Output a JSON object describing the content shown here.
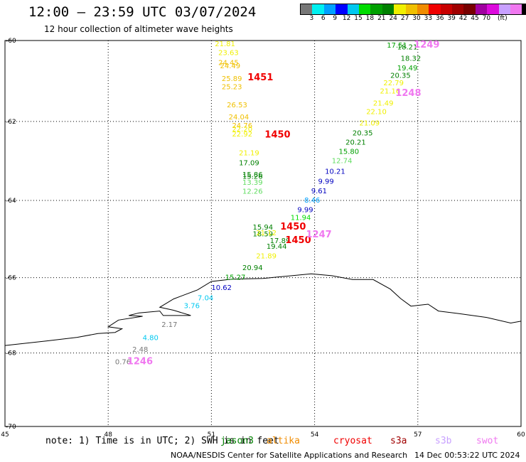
{
  "header": {
    "title": "12:00 – 23:59 UTC 03/07/2024",
    "subtitle": "12 hour collection of altimeter wave heights"
  },
  "colorbar": {
    "colors": [
      "#777777",
      "#00f0f0",
      "#00a0ff",
      "#0000ff",
      "#00c8f0",
      "#00dc00",
      "#00a000",
      "#008000",
      "#f0f000",
      "#f0c000",
      "#f08c00",
      "#f00000",
      "#c80000",
      "#a00000",
      "#780000",
      "#a000a0",
      "#dc0adc",
      "#c8a0ff",
      "#f078f0",
      "#000000"
    ],
    "labels": [
      "3",
      "6",
      "9",
      "12",
      "15",
      "18",
      "21",
      "24",
      "27",
      "30",
      "33",
      "36",
      "39",
      "42",
      "45",
      "70",
      "(ft)"
    ]
  },
  "map": {
    "lon_ticks": [
      "45",
      "48",
      "51",
      "54",
      "57",
      "60"
    ],
    "lat_ticks": [
      "-60",
      "-62",
      "-64",
      "-66",
      "-68",
      "-70"
    ],
    "coastline": [
      [
        45.0,
        -67.8
      ],
      [
        46.2,
        -67.68
      ],
      [
        47.1,
        -67.58
      ],
      [
        47.7,
        -67.48
      ],
      [
        48.2,
        -67.45
      ],
      [
        48.4,
        -67.35
      ],
      [
        48.0,
        -67.3
      ],
      [
        48.3,
        -67.12
      ],
      [
        49.0,
        -67.02
      ],
      [
        48.6,
        -67.0
      ],
      [
        48.9,
        -66.93
      ],
      [
        49.5,
        -66.88
      ],
      [
        49.6,
        -67.0
      ],
      [
        50.4,
        -67.0
      ],
      [
        49.9,
        -66.86
      ],
      [
        49.5,
        -66.78
      ],
      [
        49.9,
        -66.56
      ],
      [
        50.6,
        -66.32
      ],
      [
        51.0,
        -66.1
      ],
      [
        51.6,
        -66.04
      ],
      [
        52.5,
        -66.02
      ],
      [
        53.2,
        -65.96
      ],
      [
        53.9,
        -65.9
      ],
      [
        54.5,
        -65.95
      ],
      [
        55.1,
        -66.05
      ],
      [
        55.7,
        -66.05
      ],
      [
        56.2,
        -66.3
      ],
      [
        56.5,
        -66.55
      ],
      [
        56.8,
        -66.75
      ],
      [
        57.3,
        -66.7
      ],
      [
        57.6,
        -66.88
      ],
      [
        58.2,
        -66.95
      ],
      [
        59.0,
        -67.05
      ],
      [
        59.7,
        -67.2
      ],
      [
        60.0,
        -67.15
      ]
    ],
    "tracks": [
      {
        "label": "1249",
        "label_color": "#f078f0",
        "points": [
          [
            56.1,
            -60.17,
            "17.51",
            "#00a000"
          ],
          [
            56.4,
            -60.22,
            "18.21",
            "#008000"
          ],
          [
            56.5,
            -60.5,
            "18.32",
            "#008000"
          ],
          [
            56.4,
            -60.73,
            "19.49",
            "#00a000"
          ],
          [
            56.2,
            -60.92,
            "20.35",
            "#008000"
          ],
          [
            56.0,
            -61.1,
            "22.79",
            "#f0f000"
          ],
          [
            55.9,
            -61.3,
            "21.16",
            "#f0f000"
          ],
          [
            55.7,
            -61.6,
            "21.49",
            "#f0f000"
          ],
          [
            55.5,
            -61.82,
            "22.10",
            "#f0f000"
          ],
          [
            55.3,
            -62.1,
            "21.09",
            "#f0f000"
          ],
          [
            55.1,
            -62.35,
            "20.35",
            "#008000"
          ],
          [
            54.9,
            -62.58,
            "20.21",
            "#008000"
          ],
          [
            54.7,
            -62.82,
            "15.80",
            "#00a000"
          ],
          [
            54.5,
            -63.05,
            "12.74",
            "#60dc60"
          ],
          [
            54.3,
            -63.32,
            "10.21",
            "#0000c0"
          ],
          [
            54.1,
            -63.57,
            "9.99",
            "#0000c0"
          ],
          [
            53.9,
            -63.82,
            "9.61",
            "#0000c0"
          ],
          [
            53.7,
            -64.05,
            "8.46",
            "#00a0ff"
          ],
          [
            53.5,
            -64.3,
            "9.99",
            "#0000c0"
          ],
          [
            53.3,
            -64.5,
            "11.94",
            "#00dc00"
          ]
        ]
      },
      {
        "label": "1248",
        "label_color": "#f078f0",
        "points": [
          [
            56.35,
            -61.37,
            "",
            "#fff"
          ]
        ]
      },
      {
        "label": "1451",
        "label_color": "#f00000",
        "points": [
          [
            52.05,
            -60.98,
            "",
            "#fff"
          ]
        ]
      },
      {
        "label": "",
        "label_color": "#000",
        "points": [
          [
            51.1,
            -60.14,
            "21.81",
            "#f0f000"
          ],
          [
            51.2,
            -60.36,
            "23.63",
            "#f0f000"
          ],
          [
            51.2,
            -60.6,
            "24.45",
            "#f0c000"
          ],
          [
            51.25,
            -60.68,
            "24.49",
            "#f0c000"
          ],
          [
            51.3,
            -61.0,
            "25.89",
            "#f0c000"
          ],
          [
            51.3,
            -61.2,
            "25.23",
            "#f0c000"
          ],
          [
            51.45,
            -61.65,
            "26.53",
            "#f0c000"
          ],
          [
            51.5,
            -61.95,
            "24.04",
            "#f0c000"
          ],
          [
            51.6,
            -62.16,
            "24.76",
            "#f0c000"
          ],
          [
            51.6,
            -62.25,
            "22.20",
            "#f0f000"
          ],
          [
            51.6,
            -62.38,
            "22.92",
            "#f0f000"
          ],
          [
            51.8,
            -62.85,
            "21.19",
            "#f0f000"
          ],
          [
            51.8,
            -63.1,
            "17.09",
            "#008000"
          ],
          [
            51.9,
            -63.4,
            "15.86",
            "#008000"
          ],
          [
            51.9,
            -63.45,
            "15.26",
            "#008000"
          ],
          [
            51.9,
            -63.6,
            "13.39",
            "#60dc60"
          ],
          [
            51.9,
            -63.83,
            "12.26",
            "#60dc60"
          ],
          [
            52.2,
            -64.75,
            "15.94",
            "#008000"
          ],
          [
            52.2,
            -64.92,
            "18.59",
            "#008000"
          ],
          [
            52.3,
            -64.9,
            "21.12",
            "#f0f000"
          ],
          [
            52.7,
            -65.1,
            "17.89",
            "#008000"
          ],
          [
            52.6,
            -65.25,
            "19.44",
            "#008000"
          ],
          [
            52.3,
            -65.5,
            "21.89",
            "#f0f000"
          ],
          [
            51.9,
            -65.8,
            "20.94",
            "#008000"
          ],
          [
            51.4,
            -66.05,
            "15.27",
            "#00a000"
          ],
          [
            51.0,
            -66.32,
            "10.62",
            "#0000c0"
          ],
          [
            50.6,
            -66.6,
            "7.04",
            "#00c8f0"
          ],
          [
            50.2,
            -66.8,
            "3.76",
            "#00c8f0"
          ],
          [
            49.55,
            -67.3,
            "2.17",
            "#777777"
          ],
          [
            49.0,
            -67.65,
            "4.80",
            "#00c8f0"
          ],
          [
            48.7,
            -67.97,
            "2.48",
            "#777777"
          ],
          [
            48.2,
            -68.3,
            "0.76",
            "#777777"
          ]
        ]
      },
      {
        "label": "1450",
        "label_color": "#f00000",
        "points": [
          [
            52.55,
            -62.4,
            "",
            "#fff"
          ]
        ]
      },
      {
        "label": "1450",
        "label_color": "#f00000",
        "points": [
          [
            53.0,
            -64.75,
            "",
            "#fff"
          ]
        ]
      },
      {
        "label": "1450",
        "label_color": "#f00000",
        "points": [
          [
            53.15,
            -65.1,
            "",
            "#fff"
          ]
        ]
      },
      {
        "label": "1247",
        "label_color": "#f078f0",
        "points": [
          [
            53.75,
            -64.95,
            "",
            "#fff"
          ]
        ]
      },
      {
        "label": "1246",
        "label_color": "#f078f0",
        "points": [
          [
            48.55,
            -68.3,
            "",
            "#fff"
          ]
        ]
      }
    ]
  },
  "footer": {
    "note": "note:  1) Time is in UTC; 2) SWH is in feet",
    "satellites": [
      {
        "name": "jason3",
        "color": "#008000"
      },
      {
        "name": "altika",
        "color": "#f08c00"
      },
      {
        "name": "cryosat",
        "color": "#f00000"
      },
      {
        "name": "s3a",
        "color": "#a00000"
      },
      {
        "name": "s3b",
        "color": "#c8a0ff"
      },
      {
        "name": "swot",
        "color": "#f078f0"
      }
    ],
    "credit": "NOAA/NESDIS Center for Satellite Applications and Research",
    "timestamp": "14 Dec 00:53:22 UTC 2024"
  }
}
